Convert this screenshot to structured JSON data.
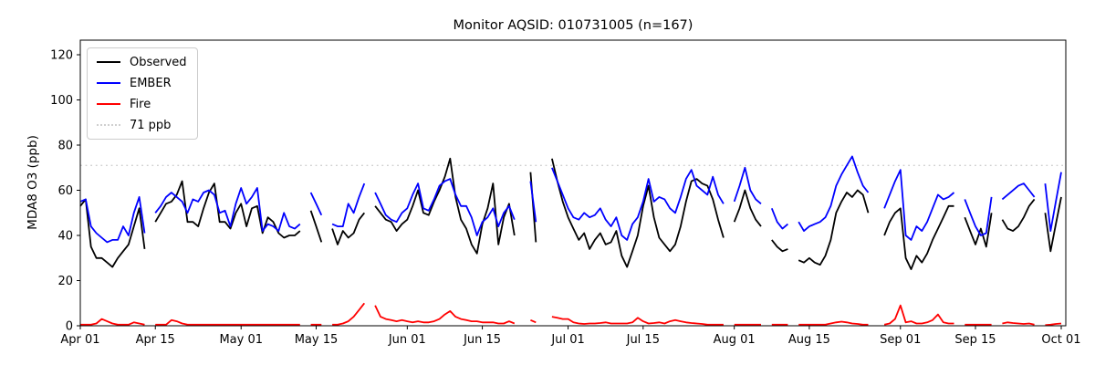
{
  "figure": {
    "title": "Monitor AQSID: 010731005 (n=167)",
    "background": "#ffffff"
  },
  "chart_data": {
    "type": "line",
    "title": "Monitor AQSID: 010731005 (n=167)",
    "xlabel": "",
    "ylabel": "MDA8 O3 (ppb)",
    "ylim": [
      0,
      126.5
    ],
    "yticks": [
      0,
      20,
      40,
      60,
      80,
      100,
      120
    ],
    "grid": false,
    "legend_position": "upper left",
    "x_unit": "days since Apr 01",
    "xtick_positions": [
      0,
      14,
      30,
      44,
      61,
      75,
      91,
      105,
      122,
      136,
      153,
      167,
      183
    ],
    "xtick_labels": [
      "Apr 01",
      "Apr 15",
      "May 01",
      "May 15",
      "Jun 01",
      "Jun 15",
      "Jul 01",
      "Jul 15",
      "Aug 01",
      "Aug 15",
      "Sep 01",
      "Sep 15",
      "Oct 01"
    ],
    "reference_line": {
      "value": 71,
      "label": "71 ppb",
      "color": "#cfcfcf",
      "style": "dotted"
    },
    "series": [
      {
        "name": "Observed",
        "color": "#000000",
        "values": [
          53,
          56,
          35,
          30,
          30,
          28,
          26,
          30,
          33,
          36,
          44,
          52,
          34,
          null,
          46,
          50,
          54,
          55,
          58,
          64,
          46,
          46,
          44,
          52,
          59,
          63,
          46,
          46,
          43,
          50,
          54,
          44,
          52,
          53,
          41,
          48,
          46,
          41,
          39,
          40,
          40,
          42,
          null,
          51,
          44,
          37,
          null,
          43,
          36,
          42,
          39,
          41,
          47,
          50,
          null,
          53,
          50,
          47,
          46,
          42,
          45,
          47,
          53,
          60,
          50,
          49,
          55,
          60,
          66,
          74,
          57,
          47,
          43,
          36,
          32,
          45,
          52,
          63,
          36,
          48,
          54,
          40,
          null,
          null,
          68,
          37,
          null,
          null,
          74,
          64,
          55,
          48,
          43,
          38,
          41,
          34,
          38,
          41,
          36,
          37,
          42,
          31,
          26,
          33,
          40,
          53,
          62,
          48,
          39,
          36,
          33,
          36,
          44,
          55,
          64,
          65,
          63,
          62,
          56,
          47,
          39,
          null,
          46,
          52,
          60,
          52,
          47,
          44,
          null,
          38,
          35,
          33,
          34,
          null,
          29,
          28,
          30,
          28,
          27,
          31,
          38,
          50,
          55,
          59,
          57,
          60,
          58,
          50,
          null,
          null,
          40,
          46,
          50,
          52,
          30,
          25,
          31,
          28,
          32,
          38,
          43,
          48,
          53,
          53,
          null,
          48,
          42,
          36,
          43,
          35,
          50,
          null,
          47,
          43,
          42,
          44,
          48,
          53,
          56,
          null,
          50,
          33,
          45,
          57
        ]
      },
      {
        "name": "EMBER",
        "color": "#0000ff",
        "values": [
          55,
          56,
          44,
          41,
          39,
          37,
          38,
          38,
          44,
          40,
          50,
          57,
          41,
          null,
          50,
          53,
          57,
          59,
          57,
          55,
          50,
          56,
          55,
          59,
          60,
          58,
          50,
          51,
          44,
          54,
          61,
          54,
          57,
          61,
          42,
          45,
          44,
          42,
          50,
          44,
          43,
          45,
          null,
          59,
          54,
          49,
          null,
          45,
          44,
          44,
          54,
          50,
          57,
          63,
          null,
          59,
          54,
          49,
          47,
          46,
          50,
          52,
          58,
          63,
          52,
          51,
          56,
          62,
          64,
          65,
          58,
          53,
          53,
          48,
          40,
          46,
          48,
          52,
          44,
          50,
          53,
          47,
          null,
          null,
          64,
          46,
          null,
          null,
          70,
          64,
          58,
          52,
          48,
          47,
          50,
          48,
          49,
          52,
          47,
          44,
          48,
          40,
          38,
          45,
          48,
          55,
          65,
          55,
          57,
          56,
          52,
          50,
          57,
          65,
          69,
          62,
          60,
          58,
          66,
          58,
          54,
          null,
          55,
          62,
          70,
          60,
          56,
          54,
          null,
          52,
          46,
          43,
          45,
          null,
          46,
          42,
          44,
          45,
          46,
          48,
          53,
          62,
          67,
          71,
          75,
          68,
          62,
          59,
          null,
          null,
          52,
          58,
          64,
          69,
          40,
          38,
          44,
          42,
          46,
          52,
          58,
          56,
          57,
          59,
          null,
          56,
          50,
          44,
          40,
          41,
          57,
          null,
          56,
          58,
          60,
          62,
          63,
          60,
          57,
          null,
          63,
          42,
          55,
          68
        ]
      },
      {
        "name": "Fire",
        "color": "#ff0000",
        "values": [
          0.5,
          0.5,
          0.5,
          1,
          3,
          2,
          1,
          0.5,
          0.5,
          0.5,
          1.5,
          1,
          0.5,
          null,
          0.5,
          0.5,
          0.5,
          2.5,
          2,
          1,
          0.5,
          0.5,
          0.5,
          0.5,
          0.5,
          0.5,
          0.5,
          0.5,
          0.5,
          0.5,
          0.5,
          0.5,
          0.5,
          0.5,
          0.5,
          0.5,
          0.5,
          0.5,
          0.5,
          0.5,
          0.5,
          0.5,
          null,
          0.5,
          0.5,
          0.5,
          null,
          0.5,
          0.5,
          1,
          2,
          4,
          7,
          10,
          null,
          9,
          4,
          3,
          2.5,
          2,
          2.5,
          2,
          1.5,
          2,
          1.5,
          1.5,
          2,
          3,
          5,
          6.5,
          4,
          3,
          2.5,
          2,
          2,
          1.5,
          1.5,
          1.5,
          1,
          1,
          2,
          1,
          null,
          null,
          2.5,
          1.5,
          null,
          null,
          4,
          3.5,
          3,
          3,
          1.5,
          1,
          0.8,
          1,
          1,
          1.2,
          1.5,
          1,
          1,
          1,
          1,
          1.5,
          3.5,
          2,
          1,
          1.2,
          1.5,
          1,
          2,
          2.5,
          2,
          1.5,
          1.2,
          1,
          0.8,
          0.5,
          0.5,
          0.5,
          0.5,
          null,
          0.5,
          0.5,
          0.5,
          0.5,
          0.5,
          0.5,
          null,
          0.5,
          0.5,
          0.5,
          0.5,
          null,
          0.5,
          0.5,
          0.5,
          0.5,
          0.5,
          0.5,
          1,
          1.5,
          1.8,
          1.5,
          1,
          0.8,
          0.5,
          0.5,
          null,
          null,
          0.5,
          1,
          3,
          9,
          1.5,
          2,
          1,
          1,
          1.5,
          2.5,
          5,
          1.5,
          1,
          1,
          null,
          0.5,
          0.5,
          0.5,
          0.5,
          0.5,
          0.5,
          null,
          1,
          1.5,
          1.2,
          1,
          0.8,
          1,
          0.5,
          null,
          0.3,
          0.5,
          0.8,
          1
        ]
      }
    ]
  },
  "legend": {
    "items": [
      {
        "label": "Observed"
      },
      {
        "label": "EMBER"
      },
      {
        "label": "Fire"
      },
      {
        "label": "71 ppb"
      }
    ]
  }
}
